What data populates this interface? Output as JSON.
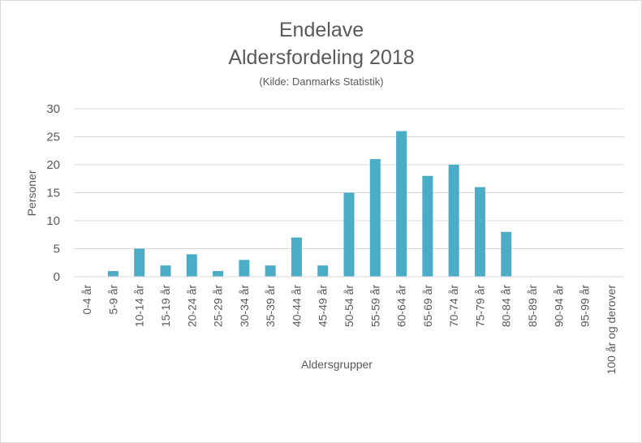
{
  "chart_data": {
    "type": "bar",
    "title": "Endelave",
    "title_line2": "Aldersfordeling 2018",
    "subtitle": "(Kilde: Danmarks Statistik)",
    "xlabel": "Aldersgrupper",
    "ylabel": "Personer",
    "ylim": [
      0,
      30
    ],
    "yticks": [
      0,
      5,
      10,
      15,
      20,
      25,
      30
    ],
    "grid": true,
    "legend": "none",
    "bar_color": "#4bacc6",
    "categories": [
      "0-4 år",
      "5-9 år",
      "10-14 år",
      "15-19 år",
      "20-24 år",
      "25-29 år",
      "30-34 år",
      "35-39 år",
      "40-44 år",
      "45-49 år",
      "50-54 år",
      "55-59 år",
      "60-64 år",
      "65-69 år",
      "70-74 år",
      "75-79 år",
      "80-84 år",
      "85-89 år",
      "90-94 år",
      "95-99 år",
      "100 år og derover"
    ],
    "values": [
      0,
      1,
      5,
      2,
      4,
      1,
      3,
      2,
      7,
      2,
      15,
      21,
      26,
      18,
      20,
      16,
      8,
      0,
      0,
      0,
      0
    ]
  }
}
